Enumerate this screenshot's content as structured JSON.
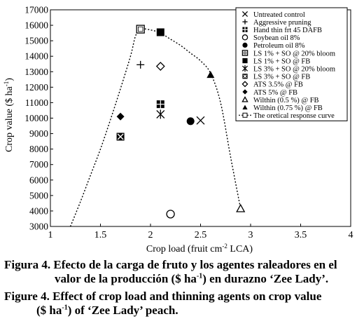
{
  "chart_data": {
    "type": "scatter",
    "xlabel_prefix": "Crop load (fruit cm",
    "xlabel_sup": "-2",
    "xlabel_suffix": " LCA)",
    "ylabel_prefix": "Crop value ($ ha",
    "ylabel_sup": "-1",
    "ylabel_suffix": ")",
    "xlim": [
      1,
      4
    ],
    "ylim": [
      3000,
      17000
    ],
    "xticks": [
      "1",
      "1.5",
      "2",
      "2.5",
      "3",
      "3.5",
      "4"
    ],
    "yticks": [
      "3000",
      "4000",
      "5000",
      "6000",
      "7000",
      "8000",
      "9000",
      "10000",
      "11000",
      "12000",
      "13000",
      "14000",
      "15000",
      "16000",
      "17000"
    ],
    "xtick_values": [
      1,
      1.5,
      2,
      2.5,
      3,
      3.5,
      4
    ],
    "ytick_values": [
      3000,
      4000,
      5000,
      6000,
      7000,
      8000,
      9000,
      10000,
      11000,
      12000,
      13000,
      14000,
      15000,
      16000,
      17000
    ],
    "series": [
      {
        "name": "Untreated control",
        "marker": "x",
        "points": [
          [
            2.5,
            9850
          ]
        ]
      },
      {
        "name": "Aggressive pruning",
        "marker": "plus",
        "points": [
          [
            1.9,
            13450
          ]
        ]
      },
      {
        "name": "Hand thin frt 45 DAFB",
        "marker": "square-plus",
        "points": [
          [
            2.1,
            10900
          ]
        ]
      },
      {
        "name": "Soybean oil 8%",
        "marker": "circle-open",
        "points": [
          [
            2.2,
            3800
          ]
        ]
      },
      {
        "name": "Petroleum oil 8%",
        "marker": "circle-filled",
        "points": [
          [
            2.4,
            9800
          ]
        ]
      },
      {
        "name": "LS 1% + SO @ 20% bloom",
        "marker": "square-open",
        "points": [
          [
            1.9,
            15750
          ]
        ]
      },
      {
        "name": "LS 1% + SO @ FB",
        "marker": "square-filled",
        "points": [
          [
            2.1,
            15550
          ]
        ]
      },
      {
        "name": "LS 3% + SO @ 20% bloom",
        "marker": "star",
        "points": [
          [
            2.1,
            10250
          ]
        ]
      },
      {
        "name": "LS 3% + SO @ FB",
        "marker": "square-x",
        "points": [
          [
            1.7,
            8800
          ]
        ]
      },
      {
        "name": "ATS 3.5% @ FB",
        "marker": "diamond-open",
        "points": [
          [
            2.1,
            13350
          ]
        ]
      },
      {
        "name": "ATS 5% @ FB",
        "marker": "diamond-filled",
        "points": [
          [
            1.7,
            10100
          ]
        ]
      },
      {
        "name": "Wilthin (0.5 %) @ FB",
        "marker": "triangle-open",
        "points": [
          [
            2.9,
            4150
          ]
        ]
      },
      {
        "name": "Wilthin (0.75 %) @ FB",
        "marker": "triangle-filled",
        "points": [
          [
            2.6,
            12800
          ]
        ]
      }
    ],
    "curve": {
      "name": "The oretical response curve",
      "marker": "dotted-line-square",
      "points": [
        [
          1.2,
          3000
        ],
        [
          1.3,
          4600
        ],
        [
          1.4,
          6300
        ],
        [
          1.5,
          8000
        ],
        [
          1.6,
          9900
        ],
        [
          1.7,
          11900
        ],
        [
          1.8,
          14000
        ],
        [
          1.85,
          15300
        ],
        [
          1.9,
          15750
        ],
        [
          2.0,
          15700
        ],
        [
          2.1,
          15500
        ],
        [
          2.2,
          15100
        ],
        [
          2.3,
          14700
        ],
        [
          2.4,
          14200
        ],
        [
          2.5,
          13700
        ],
        [
          2.6,
          12900
        ],
        [
          2.7,
          11000
        ],
        [
          2.8,
          7500
        ],
        [
          2.9,
          4150
        ]
      ]
    },
    "legend_position": "top-right",
    "grid": false
  },
  "caption": {
    "es_prefix": "Figura 4. Efecto de la carga de fruto y los agentes raleadores en el",
    "es_line2_prefix": "valor de la producción ($ ha",
    "es_line2_sup": "-1",
    "es_line2_suffix": ") en durazno ‘Zee Lady’.",
    "en_prefix": "Figure 4. Effect of crop load and thinning agents on crop value",
    "en_line2_prefix": "($ ha",
    "en_line2_sup": "-1",
    "en_line2_suffix": ") of ‘Zee Lady’ peach."
  }
}
